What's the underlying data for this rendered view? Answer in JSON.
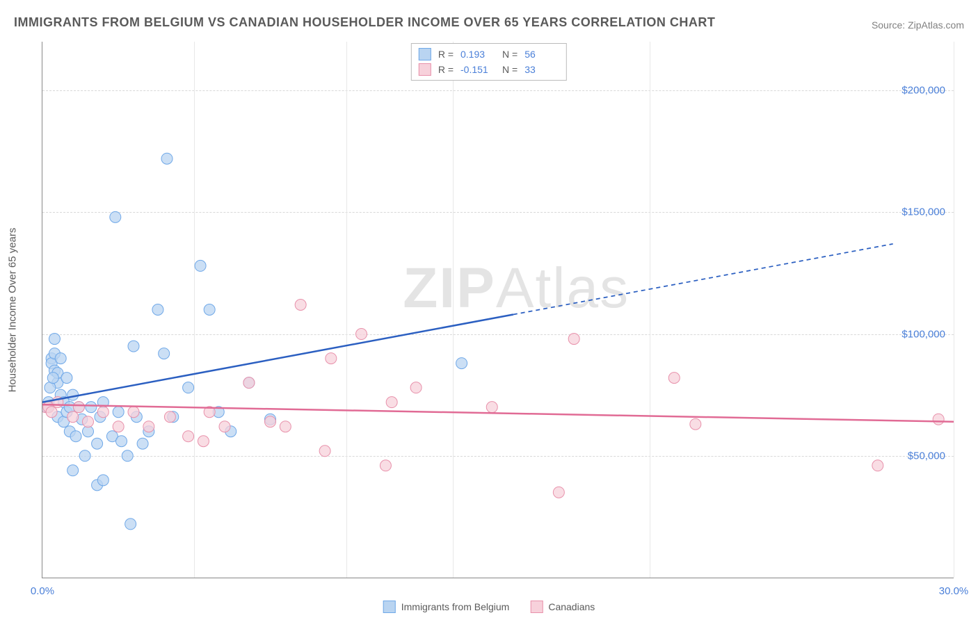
{
  "title": "IMMIGRANTS FROM BELGIUM VS CANADIAN HOUSEHOLDER INCOME OVER 65 YEARS CORRELATION CHART",
  "source": "Source: ZipAtlas.com",
  "watermark": {
    "bold": "ZIP",
    "thin": "Atlas"
  },
  "chart": {
    "type": "scatter",
    "ylabel": "Householder Income Over 65 years",
    "xlim": [
      0,
      30
    ],
    "ylim": [
      0,
      220000
    ],
    "xticks": [
      {
        "pos": 0,
        "label": "0.0%"
      },
      {
        "pos": 30,
        "label": "30.0%"
      }
    ],
    "yticks": [
      {
        "pos": 50000,
        "label": "$50,000"
      },
      {
        "pos": 100000,
        "label": "$100,000"
      },
      {
        "pos": 150000,
        "label": "$150,000"
      },
      {
        "pos": 200000,
        "label": "$200,000"
      }
    ],
    "xgrid_minor": [
      5,
      10,
      13.5,
      20,
      30
    ],
    "background_color": "#ffffff",
    "grid_color": "#d8d8d8",
    "series": [
      {
        "name": "Immigrants from Belgium",
        "color_fill": "#b9d4f1",
        "color_stroke": "#6fa8e8",
        "marker_radius": 8,
        "R": "0.193",
        "N": "56",
        "trend": {
          "x1": 0,
          "y1": 72000,
          "x2_solid": 15.5,
          "y2_solid": 108000,
          "x2": 28,
          "y2": 137000,
          "color": "#2b5fc1",
          "width": 2.5
        },
        "points": [
          [
            0.2,
            70000
          ],
          [
            0.2,
            72000
          ],
          [
            0.3,
            90000
          ],
          [
            0.3,
            88000
          ],
          [
            0.4,
            85000
          ],
          [
            0.4,
            92000
          ],
          [
            0.4,
            98000
          ],
          [
            0.5,
            66000
          ],
          [
            0.5,
            80000
          ],
          [
            0.5,
            84000
          ],
          [
            0.6,
            75000
          ],
          [
            0.6,
            90000
          ],
          [
            0.7,
            64000
          ],
          [
            0.7,
            72000
          ],
          [
            0.8,
            68000
          ],
          [
            0.8,
            82000
          ],
          [
            0.9,
            60000
          ],
          [
            0.9,
            70000
          ],
          [
            1.0,
            44000
          ],
          [
            1.0,
            75000
          ],
          [
            1.1,
            58000
          ],
          [
            1.2,
            70000
          ],
          [
            1.3,
            65000
          ],
          [
            1.4,
            50000
          ],
          [
            1.5,
            60000
          ],
          [
            1.6,
            70000
          ],
          [
            1.8,
            38000
          ],
          [
            1.8,
            55000
          ],
          [
            1.9,
            66000
          ],
          [
            2.0,
            72000
          ],
          [
            2.0,
            40000
          ],
          [
            2.3,
            58000
          ],
          [
            2.4,
            148000
          ],
          [
            2.5,
            68000
          ],
          [
            2.6,
            56000
          ],
          [
            2.8,
            50000
          ],
          [
            2.9,
            22000
          ],
          [
            3.0,
            95000
          ],
          [
            3.1,
            66000
          ],
          [
            3.3,
            55000
          ],
          [
            3.5,
            60000
          ],
          [
            3.8,
            110000
          ],
          [
            4.0,
            92000
          ],
          [
            4.1,
            172000
          ],
          [
            4.3,
            66000
          ],
          [
            4.8,
            78000
          ],
          [
            5.2,
            128000
          ],
          [
            5.5,
            110000
          ],
          [
            5.8,
            68000
          ],
          [
            6.2,
            60000
          ],
          [
            6.8,
            80000
          ],
          [
            7.5,
            65000
          ],
          [
            13.8,
            88000
          ],
          [
            0.15,
            70000
          ],
          [
            0.25,
            78000
          ],
          [
            0.35,
            82000
          ]
        ]
      },
      {
        "name": "Canadians",
        "color_fill": "#f7d1db",
        "color_stroke": "#e891ab",
        "marker_radius": 8,
        "R": "-0.151",
        "N": "33",
        "trend": {
          "x1": 0,
          "y1": 71000,
          "x2_solid": 30,
          "y2_solid": 64000,
          "x2": 30,
          "y2": 64000,
          "color": "#e16b95",
          "width": 2.5
        },
        "points": [
          [
            0.1,
            70000
          ],
          [
            0.2,
            70000
          ],
          [
            0.3,
            68000
          ],
          [
            0.5,
            72000
          ],
          [
            1.0,
            66000
          ],
          [
            1.2,
            70000
          ],
          [
            1.5,
            64000
          ],
          [
            2.0,
            68000
          ],
          [
            2.5,
            62000
          ],
          [
            3.0,
            68000
          ],
          [
            3.5,
            62000
          ],
          [
            4.2,
            66000
          ],
          [
            4.8,
            58000
          ],
          [
            5.3,
            56000
          ],
          [
            5.5,
            68000
          ],
          [
            6.0,
            62000
          ],
          [
            6.8,
            80000
          ],
          [
            7.5,
            64000
          ],
          [
            8.0,
            62000
          ],
          [
            8.5,
            112000
          ],
          [
            9.3,
            52000
          ],
          [
            9.5,
            90000
          ],
          [
            10.5,
            100000
          ],
          [
            11.3,
            46000
          ],
          [
            11.5,
            72000
          ],
          [
            12.3,
            78000
          ],
          [
            14.8,
            70000
          ],
          [
            17.0,
            35000
          ],
          [
            17.5,
            98000
          ],
          [
            20.8,
            82000
          ],
          [
            21.5,
            63000
          ],
          [
            27.5,
            46000
          ],
          [
            29.5,
            65000
          ]
        ]
      }
    ]
  }
}
